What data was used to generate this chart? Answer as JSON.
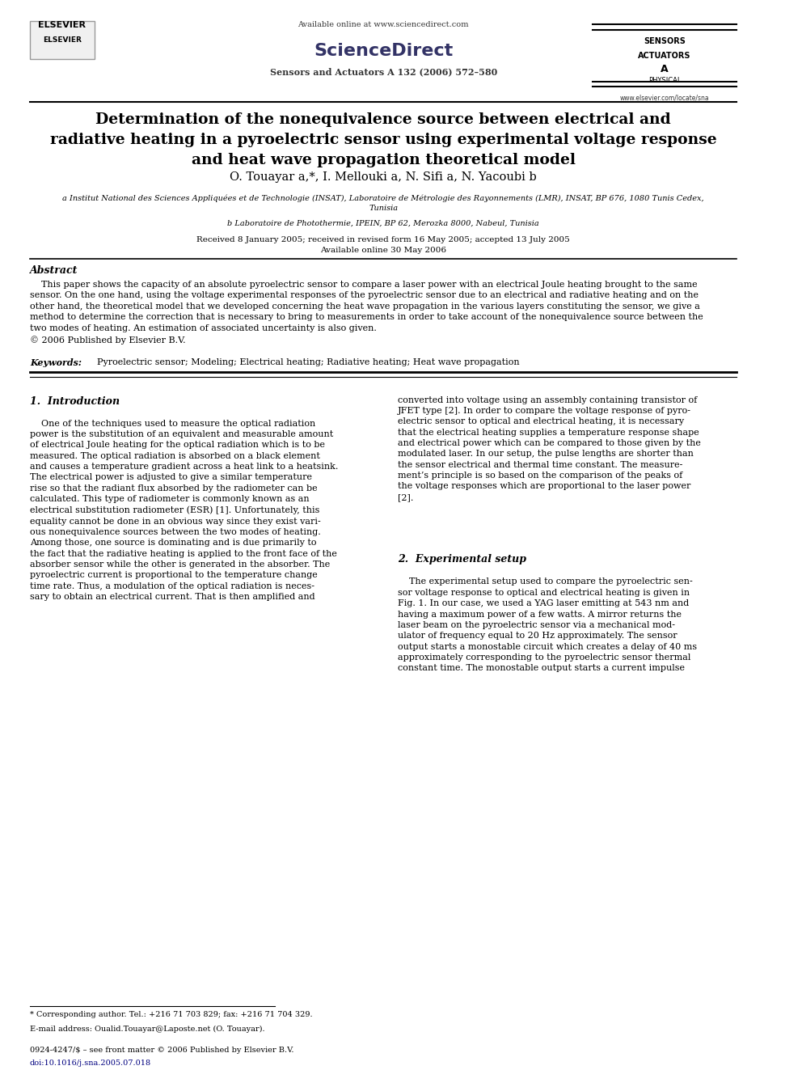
{
  "page_width": 9.92,
  "page_height": 13.23,
  "background_color": "#ffffff",
  "header": {
    "available_online": "Available online at www.sciencedirect.com",
    "journal_name": "Sensors and Actuators A 132 (2006) 572–580",
    "sciencedirect_text": "ScienceDirect",
    "journal_logo_lines": [
      "SENSORS",
      "ACTUATORS",
      "A",
      "PHYSICAL"
    ],
    "website": "www.elsevier.com/locate/sna"
  },
  "title": "Determination of the nonequivalence source between electrical and\nradiative heating in a pyroelectric sensor using experimental voltage response\nand heat wave propagation theoretical model",
  "authors": "O. Touayar a,*, I. Mellouki a, N. Sifi a, N. Yacoubi b",
  "affiliation_a": "a Institut National des Sciences Appliquées et de Technologie (INSAT), Laboratoire de Métrologie des Rayonnements (LMR), INSAT, BP 676, 1080 Tunis Cedex,\nTunisia",
  "affiliation_b": "b Laboratoire de Photothermie, IPEIN, BP 62, Merozka 8000, Nabeul, Tunisia",
  "dates": "Received 8 January 2005; received in revised form 16 May 2005; accepted 13 July 2005\nAvailable online 30 May 2006",
  "abstract_title": "Abstract",
  "abstract_text": "    This paper shows the capacity of an absolute pyroelectric sensor to compare a laser power with an electrical Joule heating brought to the same\nsensor. On the one hand, using the voltage experimental responses of the pyroelectric sensor due to an electrical and radiative heating and on the\nother hand, the theoretical model that we developed concerning the heat wave propagation in the various layers constituting the sensor, we give a\nmethod to determine the correction that is necessary to bring to measurements in order to take account of the nonequivalence source between the\ntwo modes of heating. An estimation of associated uncertainty is also given.\n© 2006 Published by Elsevier B.V.",
  "keywords_label": "Keywords:",
  "keywords_text": "  Pyroelectric sensor; Modeling; Electrical heating; Radiative heating; Heat wave propagation",
  "section1_title": "1.  Introduction",
  "section1_left": "    One of the techniques used to measure the optical radiation\npower is the substitution of an equivalent and measurable amount\nof electrical Joule heating for the optical radiation which is to be\nmeasured. The optical radiation is absorbed on a black element\nand causes a temperature gradient across a heat link to a heatsink.\nThe electrical power is adjusted to give a similar temperature\nrise so that the radiant flux absorbed by the radiometer can be\ncalculated. This type of radiometer is commonly known as an\nelectrical substitution radiometer (ESR) [1]. Unfortunately, this\nequality cannot be done in an obvious way since they exist vari-\nous nonequivalence sources between the two modes of heating.\nAmong those, one source is dominating and is due primarily to\nthe fact that the radiative heating is applied to the front face of the\nabsorber sensor while the other is generated in the absorber. The\npyroelectric current is proportional to the temperature change\ntime rate. Thus, a modulation of the optical radiation is neces-\nsary to obtain an electrical current. That is then amplified and",
  "section1_right": "converted into voltage using an assembly containing transistor of\nJFET type [2]. In order to compare the voltage response of pyro-\nelectric sensor to optical and electrical heating, it is necessary\nthat the electrical heating supplies a temperature response shape\nand electrical power which can be compared to those given by the\nmodulated laser. In our setup, the pulse lengths are shorter than\nthe sensor electrical and thermal time constant. The measure-\nment’s principle is so based on the comparison of the peaks of\nthe voltage responses which are proportional to the laser power\n[2].",
  "section2_title": "2.  Experimental setup",
  "section2_right": "    The experimental setup used to compare the pyroelectric sen-\nsor voltage response to optical and electrical heating is given in\nFig. 1. In our case, we used a YAG laser emitting at 543 nm and\nhaving a maximum power of a few watts. A mirror returns the\nlaser beam on the pyroelectric sensor via a mechanical mod-\nulator of frequency equal to 20 Hz approximately. The sensor\noutput starts a monostable circuit which creates a delay of 40 ms\napproximately corresponding to the pyroelectric sensor thermal\nconstant time. The monostable output starts a current impulse",
  "footnote_star": "* Corresponding author. Tel.: +216 71 703 829; fax: +216 71 704 329.",
  "footnote_email": "E-mail address: Oualid.Touayar@Laposte.net (O. Touayar).",
  "footer_issn": "0924-4247/$ – see front matter © 2006 Published by Elsevier B.V.",
  "footer_doi": "doi:10.1016/j.sna.2005.07.018"
}
